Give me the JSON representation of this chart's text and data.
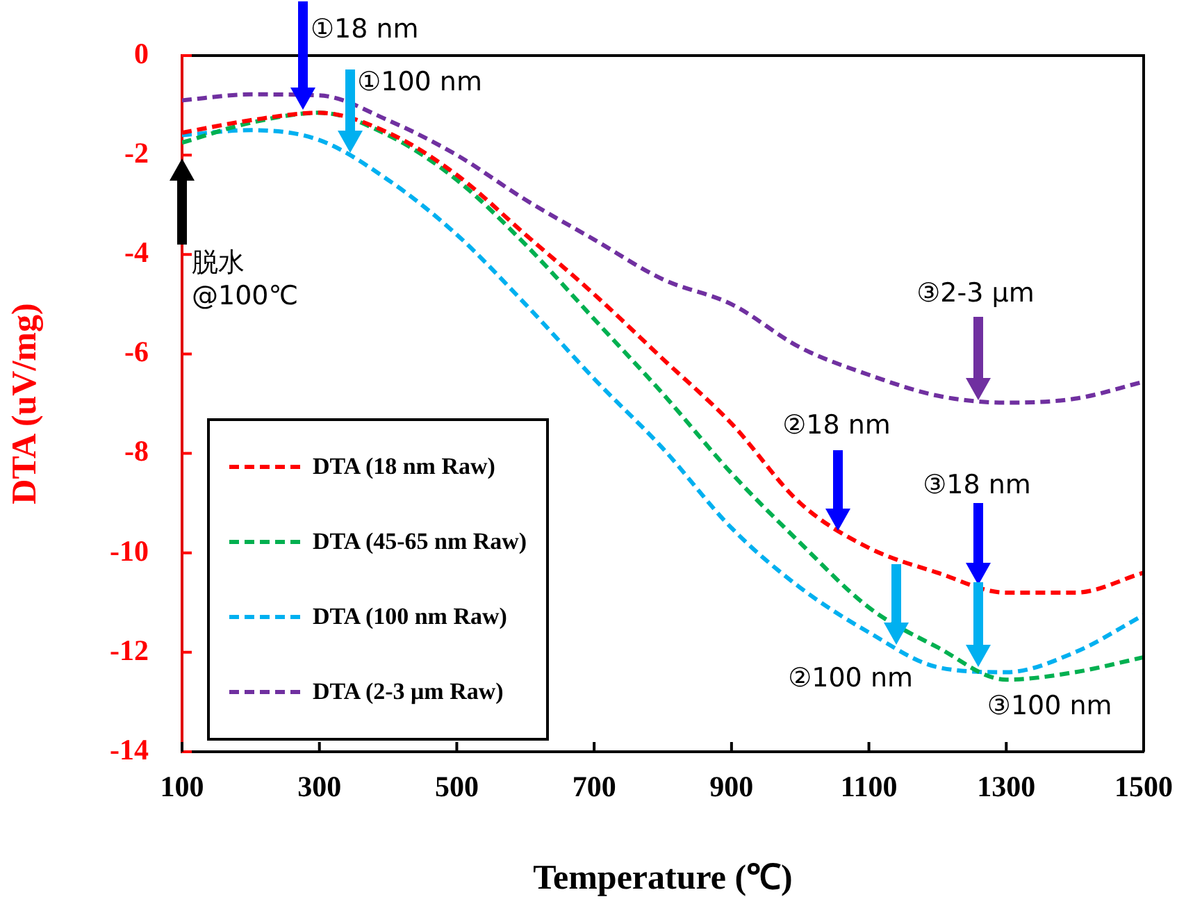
{
  "chart_data": {
    "type": "line",
    "xlabel": "Temperature (℃)",
    "ylabel": "DTA (uV/mg)",
    "x": [
      100,
      200,
      300,
      400,
      500,
      600,
      700,
      800,
      900,
      1000,
      1100,
      1200,
      1300,
      1400,
      1500
    ],
    "series": [
      {
        "name": "DTA (18 nm Raw)",
        "color": "#ff0000",
        "values": [
          -1.55,
          -1.3,
          -1.15,
          -1.55,
          -2.4,
          -3.6,
          -4.8,
          -6.1,
          -7.4,
          -9.0,
          -9.9,
          -10.4,
          -10.8,
          -10.8,
          -10.4
        ]
      },
      {
        "name": "DTA (45-65 nm Raw)",
        "color": "#00b050",
        "values": [
          -1.75,
          -1.35,
          -1.15,
          -1.6,
          -2.5,
          -3.8,
          -5.3,
          -6.8,
          -8.4,
          -9.8,
          -11.1,
          -11.9,
          -12.55,
          -12.4,
          -12.1
        ]
      },
      {
        "name": "DTA (100 nm Raw)",
        "color": "#00b0f0",
        "values": [
          -1.6,
          -1.5,
          -1.7,
          -2.5,
          -3.6,
          -5.0,
          -6.5,
          -7.9,
          -9.5,
          -10.7,
          -11.6,
          -12.3,
          -12.4,
          -12.0,
          -11.25
        ]
      },
      {
        "name": "DTA (2-3 μm Raw)",
        "color": "#7030a0",
        "values": [
          -0.9,
          -0.78,
          -0.8,
          -1.3,
          -2.0,
          -2.9,
          -3.7,
          -4.5,
          -5.0,
          -5.87,
          -6.42,
          -6.84,
          -6.98,
          -6.9,
          -6.56
        ]
      }
    ],
    "xlim": [
      100,
      1500
    ],
    "xticks": [
      100,
      300,
      500,
      700,
      900,
      1100,
      1300,
      1500
    ],
    "ylim": [
      -14,
      0
    ],
    "yticks": [
      -14,
      -12,
      -10,
      -8,
      -6,
      -4,
      -2,
      0
    ],
    "grid": false,
    "legend": "bottom left",
    "marker": "none",
    "line_style": "dashed",
    "annotations": [
      {
        "text": "①18 nm",
        "x": 275,
        "y": -1.15
      },
      {
        "text": "①100 nm",
        "x": 345,
        "y": -2.0
      },
      "③2-3 μm",
      "②18 nm",
      "③18 nm",
      {
        "text": "②100 nm",
        "x": 1140,
        "y": -11.9
      },
      {
        "text": "③100 nm",
        "x": 1260,
        "y": -12.35
      },
      "脱水\n@100℃"
    ]
  }
}
